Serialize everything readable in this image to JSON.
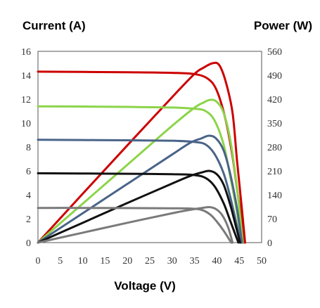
{
  "chart_data": {
    "type": "line",
    "left_axis_title": "Current (A)",
    "right_axis_title": "Power (W)",
    "xlabel": "Voltage (V)",
    "xlim": [
      0,
      50
    ],
    "ylim_left": [
      0,
      16
    ],
    "ylim_right": [
      0,
      560
    ],
    "x_ticks": [
      "0",
      "5",
      "10",
      "15",
      "20",
      "25",
      "30",
      "35",
      "40",
      "45",
      "50"
    ],
    "y_left_ticks": [
      "0",
      "2",
      "4",
      "6",
      "8",
      "10",
      "12",
      "14",
      "16"
    ],
    "y_right_ticks": [
      "0",
      "70",
      "140",
      "210",
      "280",
      "350",
      "420",
      "490",
      "560"
    ],
    "grid": false,
    "legend": "none",
    "series": [
      {
        "color": "#cc0000",
        "current_vs_voltage": [
          [
            0,
            14.3
          ],
          [
            10,
            14.28
          ],
          [
            20,
            14.25
          ],
          [
            30,
            14.2
          ],
          [
            35,
            14.1
          ],
          [
            38,
            13.7
          ],
          [
            40,
            12.7
          ],
          [
            42,
            10.2
          ],
          [
            43.5,
            7.2
          ],
          [
            44.5,
            4.5
          ],
          [
            45.5,
            1.8
          ],
          [
            46,
            0
          ]
        ],
        "power_vs_voltage": [
          [
            0,
            0
          ],
          [
            10,
            143
          ],
          [
            20,
            285
          ],
          [
            30,
            426
          ],
          [
            35,
            494
          ],
          [
            37,
            512
          ],
          [
            39,
            525
          ],
          [
            40.5,
            520
          ],
          [
            42,
            470
          ],
          [
            43.5,
            380
          ],
          [
            44.5,
            240
          ],
          [
            45.5,
            110
          ],
          [
            46.3,
            0
          ]
        ]
      },
      {
        "color": "#8cd44a",
        "current_vs_voltage": [
          [
            0,
            11.4
          ],
          [
            10,
            11.38
          ],
          [
            20,
            11.35
          ],
          [
            30,
            11.3
          ],
          [
            35,
            11.2
          ],
          [
            37.5,
            11.0
          ],
          [
            39.5,
            10.2
          ],
          [
            41.5,
            8.2
          ],
          [
            43,
            5.5
          ],
          [
            44.5,
            2.5
          ],
          [
            45.5,
            0
          ]
        ],
        "power_vs_voltage": [
          [
            0,
            0
          ],
          [
            10,
            114
          ],
          [
            20,
            228
          ],
          [
            30,
            342
          ],
          [
            35,
            395
          ],
          [
            37,
            410
          ],
          [
            38.5,
            418
          ],
          [
            40,
            412
          ],
          [
            41.5,
            380
          ],
          [
            43,
            300
          ],
          [
            44.5,
            160
          ],
          [
            45.8,
            0
          ]
        ]
      },
      {
        "color": "#4a6488",
        "current_vs_voltage": [
          [
            0,
            8.6
          ],
          [
            10,
            8.58
          ],
          [
            20,
            8.56
          ],
          [
            30,
            8.52
          ],
          [
            35,
            8.42
          ],
          [
            37.5,
            8.2
          ],
          [
            39.5,
            7.4
          ],
          [
            41.5,
            5.8
          ],
          [
            43,
            3.8
          ],
          [
            44.3,
            1.7
          ],
          [
            45.3,
            0
          ]
        ],
        "power_vs_voltage": [
          [
            0,
            0
          ],
          [
            10,
            86
          ],
          [
            20,
            172
          ],
          [
            30,
            258
          ],
          [
            34,
            292
          ],
          [
            36.5,
            305
          ],
          [
            38.2,
            313
          ],
          [
            39.8,
            305
          ],
          [
            41.5,
            270
          ],
          [
            43,
            200
          ],
          [
            44.5,
            100
          ],
          [
            45.6,
            0
          ]
        ]
      },
      {
        "color": "#111111",
        "current_vs_voltage": [
          [
            0,
            5.8
          ],
          [
            10,
            5.78
          ],
          [
            20,
            5.76
          ],
          [
            30,
            5.72
          ],
          [
            35,
            5.65
          ],
          [
            37.5,
            5.4
          ],
          [
            39.5,
            4.7
          ],
          [
            41.5,
            3.3
          ],
          [
            43,
            1.8
          ],
          [
            44.8,
            0
          ]
        ],
        "power_vs_voltage": [
          [
            0,
            0
          ],
          [
            10,
            58
          ],
          [
            20,
            116
          ],
          [
            30,
            173
          ],
          [
            34,
            195
          ],
          [
            36.5,
            205
          ],
          [
            38.3,
            210
          ],
          [
            40,
            200
          ],
          [
            41.5,
            170
          ],
          [
            43,
            110
          ],
          [
            44.2,
            50
          ],
          [
            45.2,
            0
          ]
        ]
      },
      {
        "color": "#7a7a7a",
        "current_vs_voltage": [
          [
            0,
            2.9
          ],
          [
            10,
            2.9
          ],
          [
            20,
            2.89
          ],
          [
            30,
            2.87
          ],
          [
            34,
            2.85
          ],
          [
            36.5,
            2.75
          ],
          [
            38.5,
            2.35
          ],
          [
            40,
            1.75
          ],
          [
            41.5,
            1.0
          ],
          [
            43.2,
            0
          ]
        ],
        "power_vs_voltage": [
          [
            0,
            0
          ],
          [
            10,
            29
          ],
          [
            20,
            58
          ],
          [
            30,
            86
          ],
          [
            34,
            96
          ],
          [
            36.5,
            101
          ],
          [
            38.3,
            104
          ],
          [
            39.8,
            98
          ],
          [
            41.2,
            80
          ],
          [
            42.5,
            45
          ],
          [
            43.5,
            0
          ]
        ]
      }
    ]
  }
}
